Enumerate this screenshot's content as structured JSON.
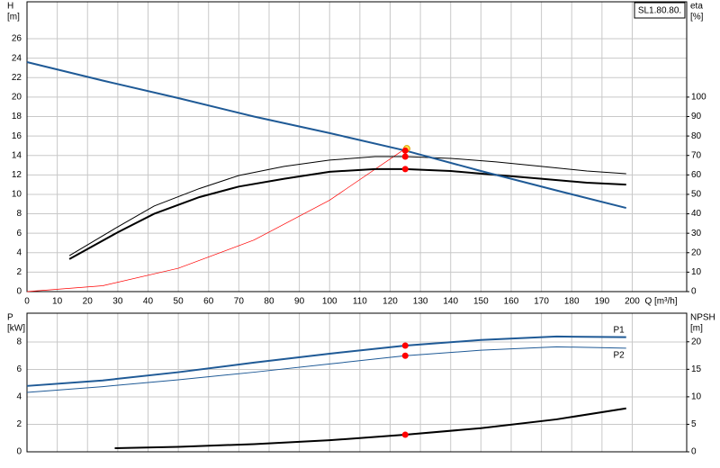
{
  "chart_data": [
    {
      "type": "line",
      "title": "SL1.80.80.",
      "xlabel": "Q [m³/h]",
      "ylabel": [
        "H",
        "[m]"
      ],
      "y2label": [
        "eta",
        "[%]"
      ],
      "xlim": [
        0,
        218
      ],
      "xticks": [
        0,
        10,
        20,
        30,
        40,
        50,
        60,
        70,
        80,
        90,
        100,
        110,
        120,
        130,
        140,
        150,
        160,
        170,
        180,
        190,
        200
      ],
      "ylim": [
        0,
        29.8
      ],
      "yticks": [
        0,
        2,
        4,
        6,
        8,
        10,
        12,
        14,
        16,
        18,
        20,
        22,
        24,
        26
      ],
      "y2lim": [
        0,
        149
      ],
      "y2ticks": [
        0,
        10,
        20,
        30,
        40,
        50,
        60,
        70,
        80,
        90,
        100
      ],
      "grid": true,
      "series": [
        {
          "color": "#ff0000",
          "width": 0.7,
          "x": [
            0,
            25,
            50,
            75,
            100,
            125
          ],
          "values": [
            0,
            0.6,
            2.4,
            5.3,
            9.4,
            14.7
          ]
        },
        {
          "color": "#000000",
          "width": 1,
          "axis": "y2",
          "x": [
            14,
            30,
            42,
            57,
            70,
            85,
            100,
            115,
            125,
            140,
            155,
            170,
            185,
            198
          ],
          "values": [
            18.5,
            33.3,
            44,
            53,
            59.7,
            64.4,
            67.6,
            69.4,
            69.4,
            68.5,
            66.7,
            64.4,
            62,
            60.6
          ]
        },
        {
          "color": "#000000",
          "width": 2,
          "axis": "y2",
          "x": [
            14,
            30,
            42,
            57,
            70,
            85,
            100,
            115,
            125,
            140,
            155,
            170,
            185,
            198
          ],
          "values": [
            16.7,
            30.5,
            40,
            48.6,
            54,
            58,
            61.6,
            63,
            63,
            62,
            60,
            58,
            56,
            55
          ]
        },
        {
          "color": "#1f5a96",
          "width": 2,
          "x": [
            0,
            25,
            50,
            75,
            100,
            125,
            150,
            175,
            198
          ],
          "values": [
            23.6,
            21.7,
            19.9,
            18,
            16.3,
            14.5,
            12.4,
            10.4,
            8.6
          ]
        }
      ],
      "points": [
        {
          "x": 125.5,
          "value": 14.7,
          "color": "#ffe14d"
        },
        {
          "x": 125,
          "value": 14.5,
          "color": "#ff0000"
        },
        {
          "x": 125,
          "value": 69.4,
          "axis": "y2",
          "color": "#ff0000"
        },
        {
          "x": 125,
          "value": 63,
          "axis": "y2",
          "color": "#ff0000"
        }
      ]
    },
    {
      "type": "line",
      "ylabel": [
        "P",
        "[kW]"
      ],
      "y2label": [
        "NPSH",
        "[m]"
      ],
      "xlim": [
        0,
        218
      ],
      "xticks": [
        0,
        10,
        20,
        30,
        40,
        50,
        60,
        70,
        80,
        90,
        100,
        110,
        120,
        130,
        140,
        150,
        160,
        170,
        180,
        190,
        200
      ],
      "ylim": [
        0,
        10.1
      ],
      "yticks": [
        0,
        2,
        4,
        6,
        8
      ],
      "y2lim": [
        0,
        25.2
      ],
      "y2ticks": [
        0,
        5,
        10,
        15,
        20
      ],
      "grid": true,
      "series": [
        {
          "name": "P1",
          "color": "#1f5a96",
          "width": 2,
          "x": [
            0,
            25,
            50,
            75,
            100,
            125,
            150,
            175,
            198
          ],
          "values": [
            4.8,
            5.2,
            5.8,
            6.5,
            7.15,
            7.74,
            8.15,
            8.4,
            8.35
          ]
        },
        {
          "name": "P2",
          "color": "#1f5a96",
          "width": 1,
          "x": [
            0,
            25,
            50,
            75,
            100,
            125,
            150,
            175,
            198
          ],
          "values": [
            4.33,
            4.75,
            5.25,
            5.8,
            6.4,
            7,
            7.4,
            7.65,
            7.55
          ]
        },
        {
          "color": "#000000",
          "width": 2,
          "axis": "y2",
          "x": [
            29,
            50,
            75,
            100,
            125,
            150,
            175,
            198
          ],
          "values": [
            0.66,
            0.9,
            1.4,
            2.1,
            3.1,
            4.3,
            5.9,
            7.9
          ]
        }
      ],
      "points": [
        {
          "x": 125,
          "value": 7.74,
          "color": "#ff0000"
        },
        {
          "x": 125,
          "value": 7,
          "color": "#ff0000"
        },
        {
          "x": 125,
          "value": 3.1,
          "axis": "y2",
          "color": "#ff0000"
        }
      ]
    }
  ]
}
